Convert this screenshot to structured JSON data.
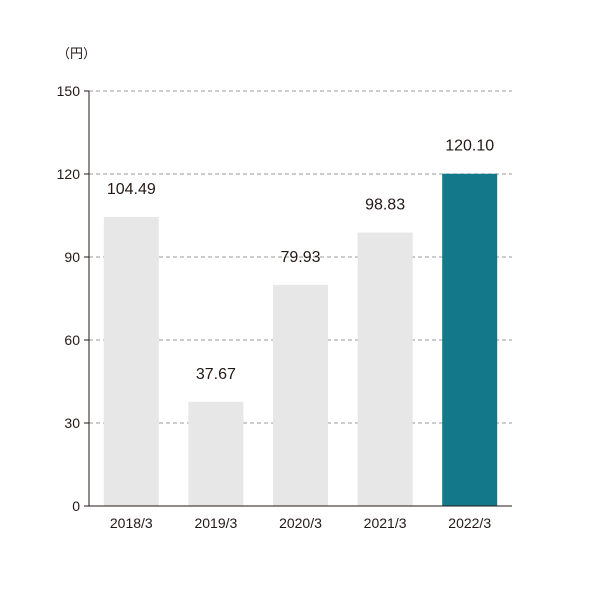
{
  "chart_data": {
    "type": "bar",
    "unit_label": "（円）",
    "categories": [
      "2018/3",
      "2019/3",
      "2020/3",
      "2021/3",
      "2022/3"
    ],
    "values": [
      104.49,
      37.67,
      79.93,
      98.83,
      120.1
    ],
    "value_labels": [
      "104.49",
      "37.67",
      "79.93",
      "98.83",
      "120.10"
    ],
    "ylim": [
      0,
      150
    ],
    "yticks": [
      0,
      30,
      60,
      90,
      120,
      150
    ],
    "grid": true,
    "title": "",
    "xlabel": "",
    "ylabel": "",
    "colors": {
      "bar": "#e7e7e7",
      "highlight_bar": "#12788a",
      "grid": "#9a9a9a",
      "axis": "#231815"
    },
    "highlight_index": 4
  }
}
